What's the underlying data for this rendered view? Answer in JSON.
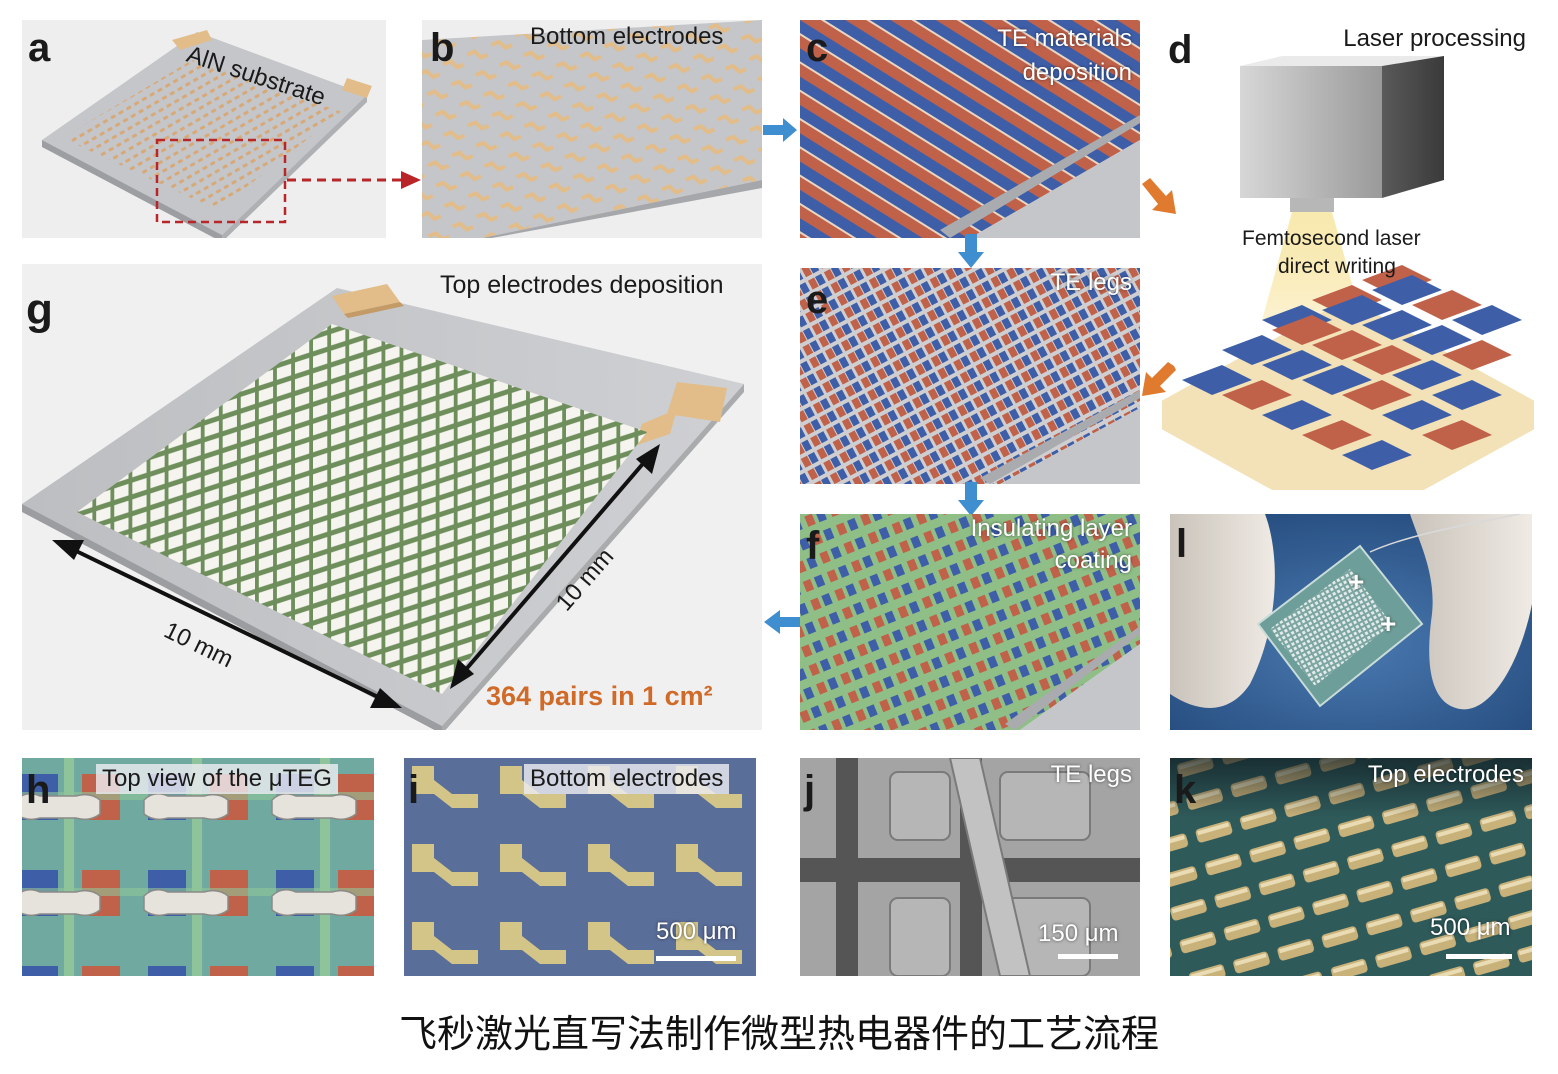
{
  "panels": {
    "a": {
      "letter": "a",
      "label": "AlN substrate"
    },
    "b": {
      "letter": "b",
      "label": "Bottom electrodes"
    },
    "c": {
      "letter": "c",
      "label_line1": "TE materials",
      "label_line2": "deposition"
    },
    "d": {
      "letter": "d",
      "label": "Laser processing",
      "annotation_line1": "Femtosecond laser",
      "annotation_line2": "direct writing"
    },
    "e": {
      "letter": "e",
      "label": "TE legs"
    },
    "f": {
      "letter": "f",
      "label_line1": "Insulating layer",
      "label_line2": "coating"
    },
    "g": {
      "letter": "g",
      "label": "Top electrodes deposition",
      "dim_x": "10 mm",
      "dim_y": "10 mm",
      "density": "364 pairs in 1 cm²"
    },
    "l": {
      "letter": "l",
      "plus1": "+",
      "plus2": "+"
    },
    "h": {
      "letter": "h",
      "label": "Top view of the μTEG"
    },
    "i": {
      "letter": "i",
      "label": "Bottom electrodes",
      "scale": "500 μm"
    },
    "j": {
      "letter": "j",
      "label": "TE legs",
      "scale": "150 μm"
    },
    "k": {
      "letter": "k",
      "label": "Top electrodes",
      "scale": "500 μm"
    }
  },
  "caption": "飞秒激光直写法制作微型热电器件的工艺流程",
  "colors": {
    "p_type": "#c0614a",
    "n_type": "#3e5fa8",
    "electrode_gold": "#e2bd8a",
    "insulator_green": "#8fbf86",
    "substrate_gray": "#c4c6c9",
    "arrow_blue": "#3f8fd0",
    "arrow_orange": "#e07a2e",
    "density_orange": "#d06a28",
    "dashed_red": "#b8262a"
  }
}
